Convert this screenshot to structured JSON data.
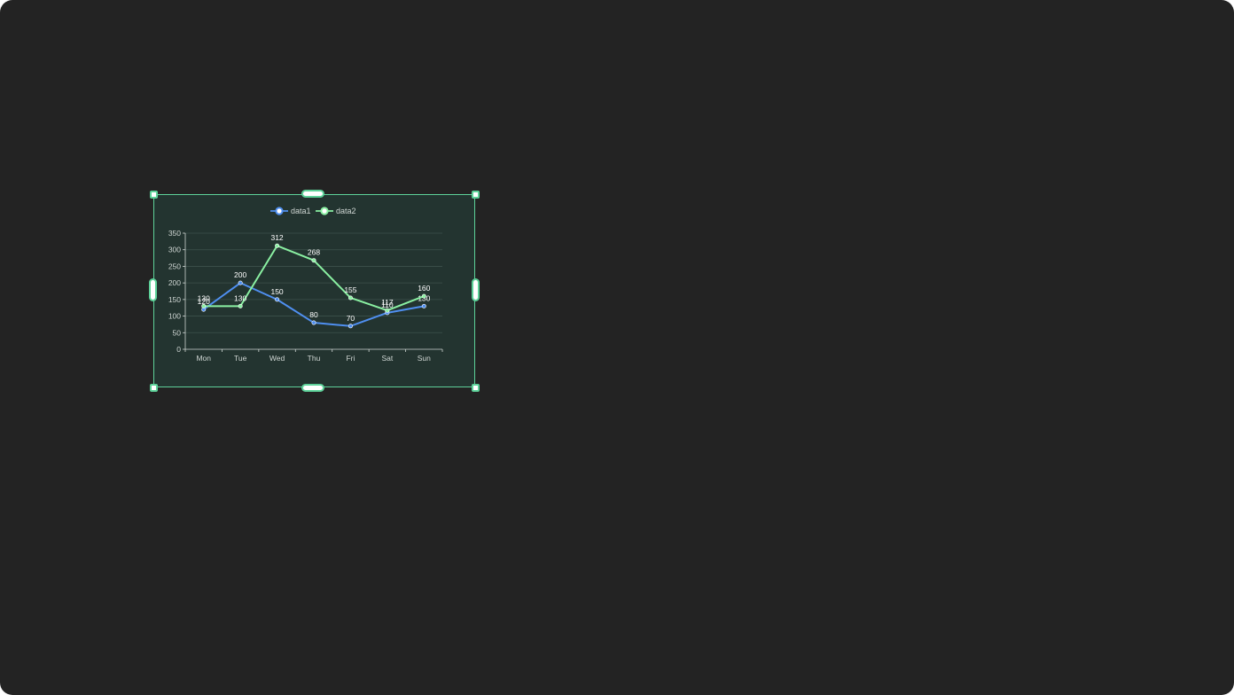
{
  "colors": {
    "background": "#232323",
    "widget_fill": "#233430",
    "selection": "#5ed29a",
    "data1": "#4f8ff0",
    "data2": "#8af0a2",
    "axis": "#cfd6d3",
    "grid": "#3d514b",
    "label": "#ffffff"
  },
  "chart_data": {
    "type": "line",
    "categories": [
      "Mon",
      "Tue",
      "Wed",
      "Thu",
      "Fri",
      "Sat",
      "Sun"
    ],
    "series": [
      {
        "name": "data1",
        "values": [
          120,
          200,
          150,
          80,
          70,
          110,
          130
        ]
      },
      {
        "name": "data2",
        "values": [
          130,
          130,
          312,
          268,
          155,
          117,
          160
        ]
      }
    ],
    "ylim": [
      0,
      350
    ],
    "yticks": [
      "0",
      "50",
      "100",
      "150",
      "200",
      "250",
      "300",
      "350"
    ],
    "grid": true,
    "legend": "top-center",
    "title": "",
    "xlabel": "",
    "ylabel": ""
  }
}
